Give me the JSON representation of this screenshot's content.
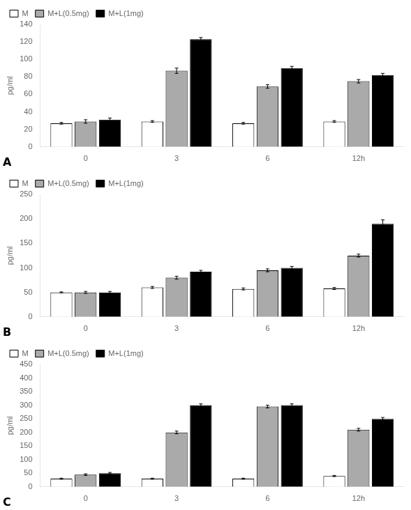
{
  "chart_data": [
    {
      "type": "bar",
      "annotation": "A",
      "ylabel": "pg/ml",
      "categories": [
        "0",
        "3",
        "6",
        "12h"
      ],
      "series": [
        {
          "name": "M",
          "color": "white",
          "values": [
            27,
            29,
            27,
            29
          ],
          "errors": [
            1,
            1,
            1,
            1
          ]
        },
        {
          "name": "M+L(0.5mg)",
          "color": "#aaaaaa",
          "values": [
            29,
            87,
            69,
            75
          ],
          "errors": [
            2,
            3,
            2,
            2
          ]
        },
        {
          "name": "M+L(1mg)",
          "color": "black",
          "values": [
            31,
            123,
            90,
            82
          ],
          "errors": [
            2,
            2,
            2,
            2
          ]
        }
      ],
      "ylim": [
        0,
        140
      ],
      "yticks": [
        0,
        20,
        40,
        60,
        80,
        100,
        120,
        140
      ],
      "grid": false,
      "legend": "upper left"
    },
    {
      "type": "bar",
      "annotation": "B",
      "ylabel": "pg/ml",
      "categories": [
        "0",
        "3",
        "6",
        "12h"
      ],
      "series": [
        {
          "name": "M",
          "color": "white",
          "values": [
            50,
            60,
            57,
            58
          ],
          "errors": [
            1,
            2,
            2,
            2
          ]
        },
        {
          "name": "M+L(0.5mg)",
          "color": "#aaaaaa",
          "values": [
            50,
            80,
            95,
            125
          ],
          "errors": [
            2,
            3,
            3,
            3
          ]
        },
        {
          "name": "M+L(1mg)",
          "color": "black",
          "values": [
            50,
            92,
            100,
            190
          ],
          "errors": [
            2,
            3,
            3,
            8
          ]
        }
      ],
      "ylim": [
        0,
        250
      ],
      "yticks": [
        0,
        50,
        100,
        150,
        200,
        250
      ],
      "grid": false,
      "legend": "upper left"
    },
    {
      "type": "bar",
      "annotation": "C",
      "ylabel": "pg/ml",
      "categories": [
        "0",
        "3",
        "6",
        "12h"
      ],
      "series": [
        {
          "name": "M",
          "color": "white",
          "values": [
            30,
            30,
            30,
            40
          ],
          "errors": [
            2,
            2,
            2,
            2
          ]
        },
        {
          "name": "M+L(0.5mg)",
          "color": "#aaaaaa",
          "values": [
            45,
            200,
            295,
            210
          ],
          "errors": [
            3,
            5,
            5,
            5
          ]
        },
        {
          "name": "M+L(1mg)",
          "color": "black",
          "values": [
            50,
            300,
            300,
            250
          ],
          "errors": [
            3,
            5,
            5,
            5
          ]
        }
      ],
      "ylim": [
        0,
        450
      ],
      "yticks": [
        0,
        50,
        100,
        150,
        200,
        250,
        300,
        350,
        400,
        450
      ],
      "grid": false,
      "legend": "upper left"
    }
  ]
}
